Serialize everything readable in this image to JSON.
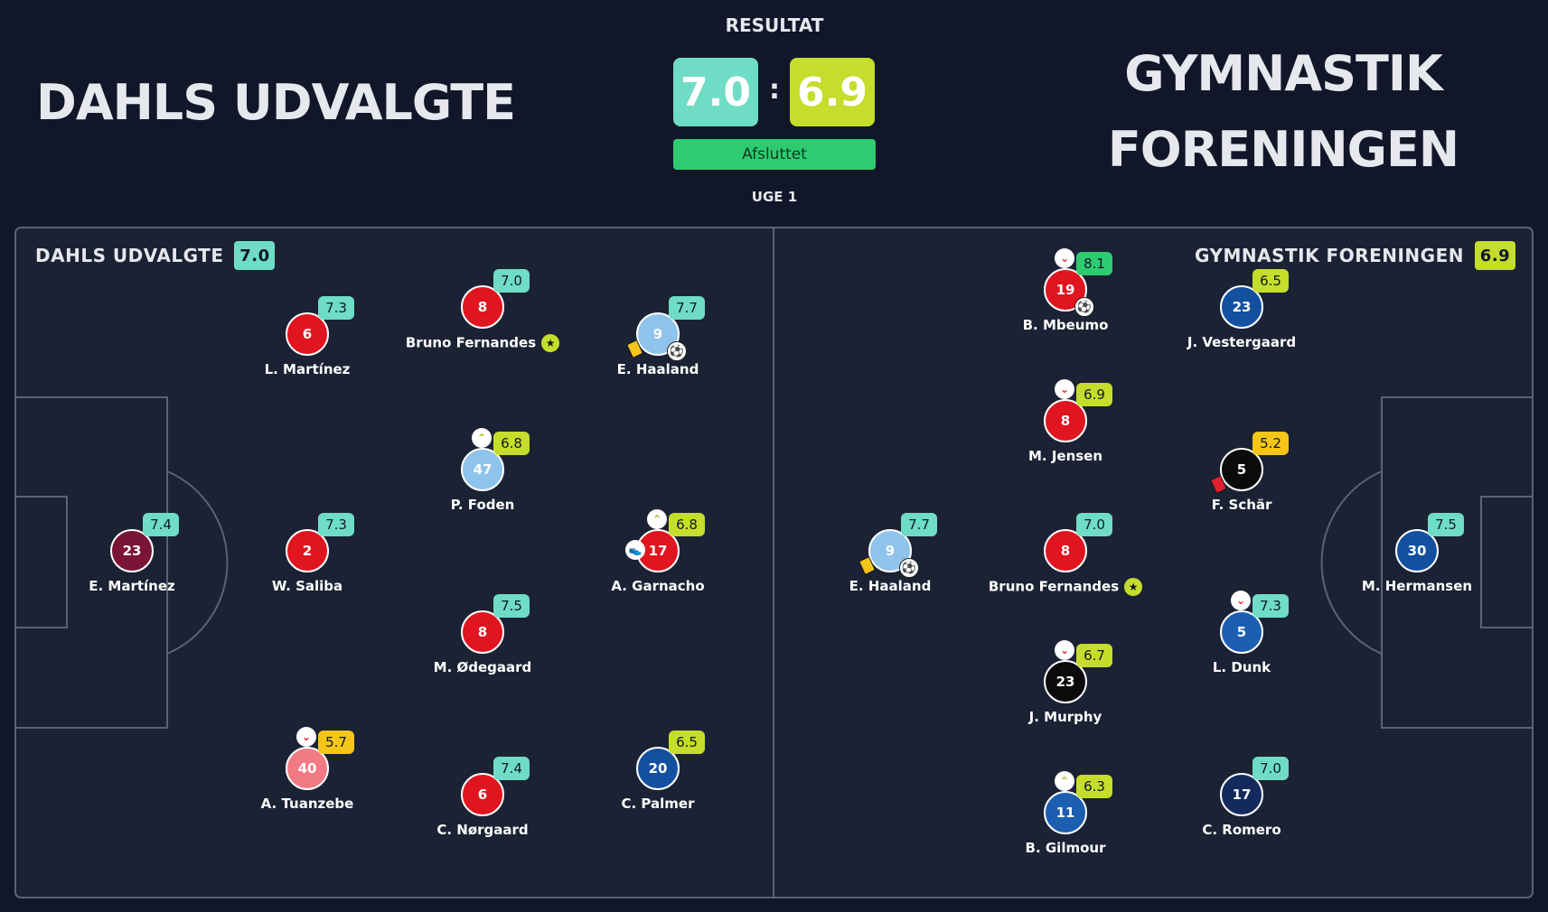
{
  "header": {
    "home_team": "DAHLS UDVALGTE",
    "away_team_line1": "GYMNASTIK",
    "away_team_line2": "FORENINGEN",
    "result_label": "RESULTAT",
    "home_score": "7.0",
    "away_score": "6.9",
    "separator": ":",
    "status": "Afsluttet",
    "week": "UGE 1"
  },
  "colors": {
    "background": "#111729",
    "pitch": "#1b2234",
    "pitch_line": "#5a6275",
    "home_score": "#6fdcc6",
    "away_score": "#c5dd2b",
    "status": "#2ecc71",
    "rating_teal": "#6fdcc6",
    "rating_lime": "#c5dd2b",
    "rating_yellow": "#f5c518",
    "rating_green": "#2ecc71"
  },
  "home_panel": {
    "name": "DAHLS UDVALGTE",
    "score": "7.0",
    "players": [
      {
        "number": "23",
        "name": "E. Martínez",
        "rating": "7.4",
        "rating_color": "#6fdcc6",
        "shirt": "#7a1535"
      },
      {
        "number": "6",
        "name": "L. Martínez",
        "rating": "7.3",
        "rating_color": "#6fdcc6",
        "shirt": "#e0151f"
      },
      {
        "number": "2",
        "name": "W. Saliba",
        "rating": "7.3",
        "rating_color": "#6fdcc6",
        "shirt": "#e0151f"
      },
      {
        "number": "40",
        "name": "A. Tuanzebe",
        "rating": "5.7",
        "rating_color": "#f5c518",
        "shirt": "#f27a85",
        "sub": "out"
      },
      {
        "number": "8",
        "name": "Bruno Fernandes",
        "rating": "7.0",
        "rating_color": "#6fdcc6",
        "shirt": "#e0151f",
        "captain": "★"
      },
      {
        "number": "47",
        "name": "P. Foden",
        "rating": "6.8",
        "rating_color": "#c5dd2b",
        "shirt": "#8ec3ec",
        "sub": "in"
      },
      {
        "number": "8",
        "name": "M. Ødegaard",
        "rating": "7.5",
        "rating_color": "#6fdcc6",
        "shirt": "#e0151f"
      },
      {
        "number": "6",
        "name": "C. Nørgaard",
        "rating": "7.4",
        "rating_color": "#6fdcc6",
        "shirt": "#e0151f"
      },
      {
        "number": "9",
        "name": "E. Haaland",
        "rating": "7.7",
        "rating_color": "#6fdcc6",
        "shirt": "#8ec3ec",
        "goal": "⚽",
        "card": "yellow"
      },
      {
        "number": "17",
        "name": "A. Garnacho",
        "rating": "6.8",
        "rating_color": "#c5dd2b",
        "shirt": "#e0151f",
        "sub": "in",
        "assist": "👟"
      },
      {
        "number": "20",
        "name": "C. Palmer",
        "rating": "6.5",
        "rating_color": "#c5dd2b",
        "shirt": "#1450a0"
      }
    ]
  },
  "away_panel": {
    "name": "GYMNASTIK FORENINGEN",
    "score": "6.9",
    "players": [
      {
        "number": "9",
        "name": "E. Haaland",
        "rating": "7.7",
        "rating_color": "#6fdcc6",
        "shirt": "#8ec3ec",
        "goal": "⚽",
        "card": "yellow"
      },
      {
        "number": "19",
        "name": "B. Mbeumo",
        "rating": "8.1",
        "rating_color": "#2ecc71",
        "shirt": "#e0151f",
        "sub": "out",
        "goal": "⚽"
      },
      {
        "number": "8",
        "name": "M. Jensen",
        "rating": "6.9",
        "rating_color": "#c5dd2b",
        "shirt": "#e0151f",
        "sub": "out"
      },
      {
        "number": "8",
        "name": "Bruno Fernandes",
        "rating": "7.0",
        "rating_color": "#6fdcc6",
        "shirt": "#e0151f",
        "captain": "★"
      },
      {
        "number": "23",
        "name": "J. Murphy",
        "rating": "6.7",
        "rating_color": "#c5dd2b",
        "shirt": "#0b0b0b",
        "sub": "out"
      },
      {
        "number": "11",
        "name": "B. Gilmour",
        "rating": "6.3",
        "rating_color": "#c5dd2b",
        "shirt": "#1c5fb0",
        "sub": "in"
      },
      {
        "number": "23",
        "name": "J. Vestergaard",
        "rating": "6.5",
        "rating_color": "#c5dd2b",
        "shirt": "#1450a0"
      },
      {
        "number": "5",
        "name": "F. Schär",
        "rating": "5.2",
        "rating_color": "#f5c518",
        "shirt": "#0b0b0b",
        "card": "red"
      },
      {
        "number": "5",
        "name": "L. Dunk",
        "rating": "7.3",
        "rating_color": "#6fdcc6",
        "shirt": "#1c5fb0",
        "sub": "out"
      },
      {
        "number": "17",
        "name": "C. Romero",
        "rating": "7.0",
        "rating_color": "#6fdcc6",
        "shirt": "#142a5c"
      },
      {
        "number": "30",
        "name": "M. Hermansen",
        "rating": "7.5",
        "rating_color": "#6fdcc6",
        "shirt": "#1450a0"
      }
    ]
  }
}
